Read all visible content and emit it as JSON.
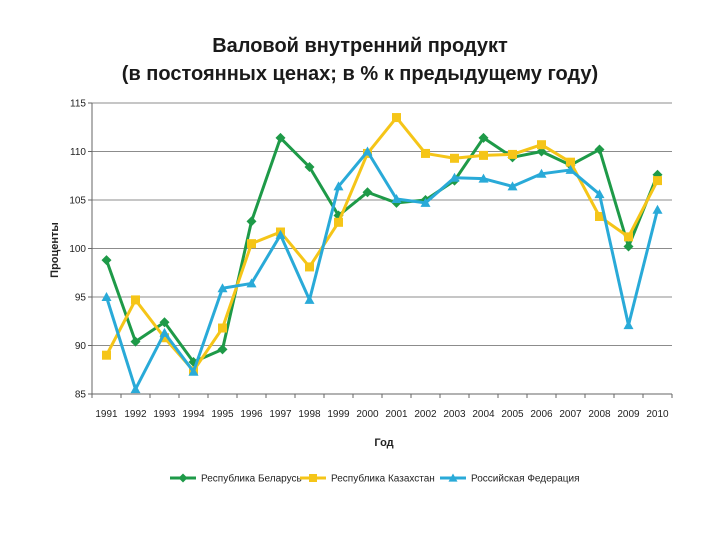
{
  "chart_data": {
    "type": "line",
    "title": "Валовой внутренний продукт",
    "subtitle": "(в постоянных ценах; в % к предыдущему году)",
    "xlabel": "Год",
    "ylabel": "Проценты",
    "ylim": [
      85,
      115
    ],
    "yticks": [
      "85",
      "90",
      "95",
      "100",
      "105",
      "110",
      "115"
    ],
    "grid": true,
    "legend_position": "bottom",
    "categories": [
      "1991",
      "1992",
      "1993",
      "1994",
      "1995",
      "1996",
      "1997",
      "1998",
      "1999",
      "2000",
      "2001",
      "2002",
      "2003",
      "2004",
      "2005",
      "2006",
      "2007",
      "2008",
      "2009",
      "2010"
    ],
    "series": [
      {
        "name": "Республика Беларусь",
        "color": "#1e9a48",
        "marker": "diamond",
        "values": [
          98.8,
          90.4,
          92.4,
          88.3,
          89.6,
          102.8,
          111.4,
          108.4,
          103.4,
          105.8,
          104.7,
          105.0,
          107.0,
          111.4,
          109.4,
          110.0,
          108.6,
          110.2,
          100.2,
          107.6
        ]
      },
      {
        "name": "Республика Казахстан",
        "color": "#f5c518",
        "marker": "square",
        "values": [
          89.0,
          94.7,
          90.8,
          87.4,
          91.8,
          100.5,
          101.7,
          98.1,
          102.7,
          109.8,
          113.5,
          109.8,
          109.3,
          109.6,
          109.7,
          110.7,
          108.9,
          103.3,
          101.2,
          107.0
        ]
      },
      {
        "name": "Российская Федерация",
        "color": "#29aad8",
        "marker": "triangle",
        "values": [
          95.0,
          85.5,
          91.3,
          87.3,
          95.9,
          96.4,
          101.4,
          94.7,
          106.4,
          110.0,
          105.1,
          104.7,
          107.3,
          107.2,
          106.4,
          107.7,
          108.1,
          105.6,
          92.1,
          104.0
        ]
      }
    ]
  }
}
